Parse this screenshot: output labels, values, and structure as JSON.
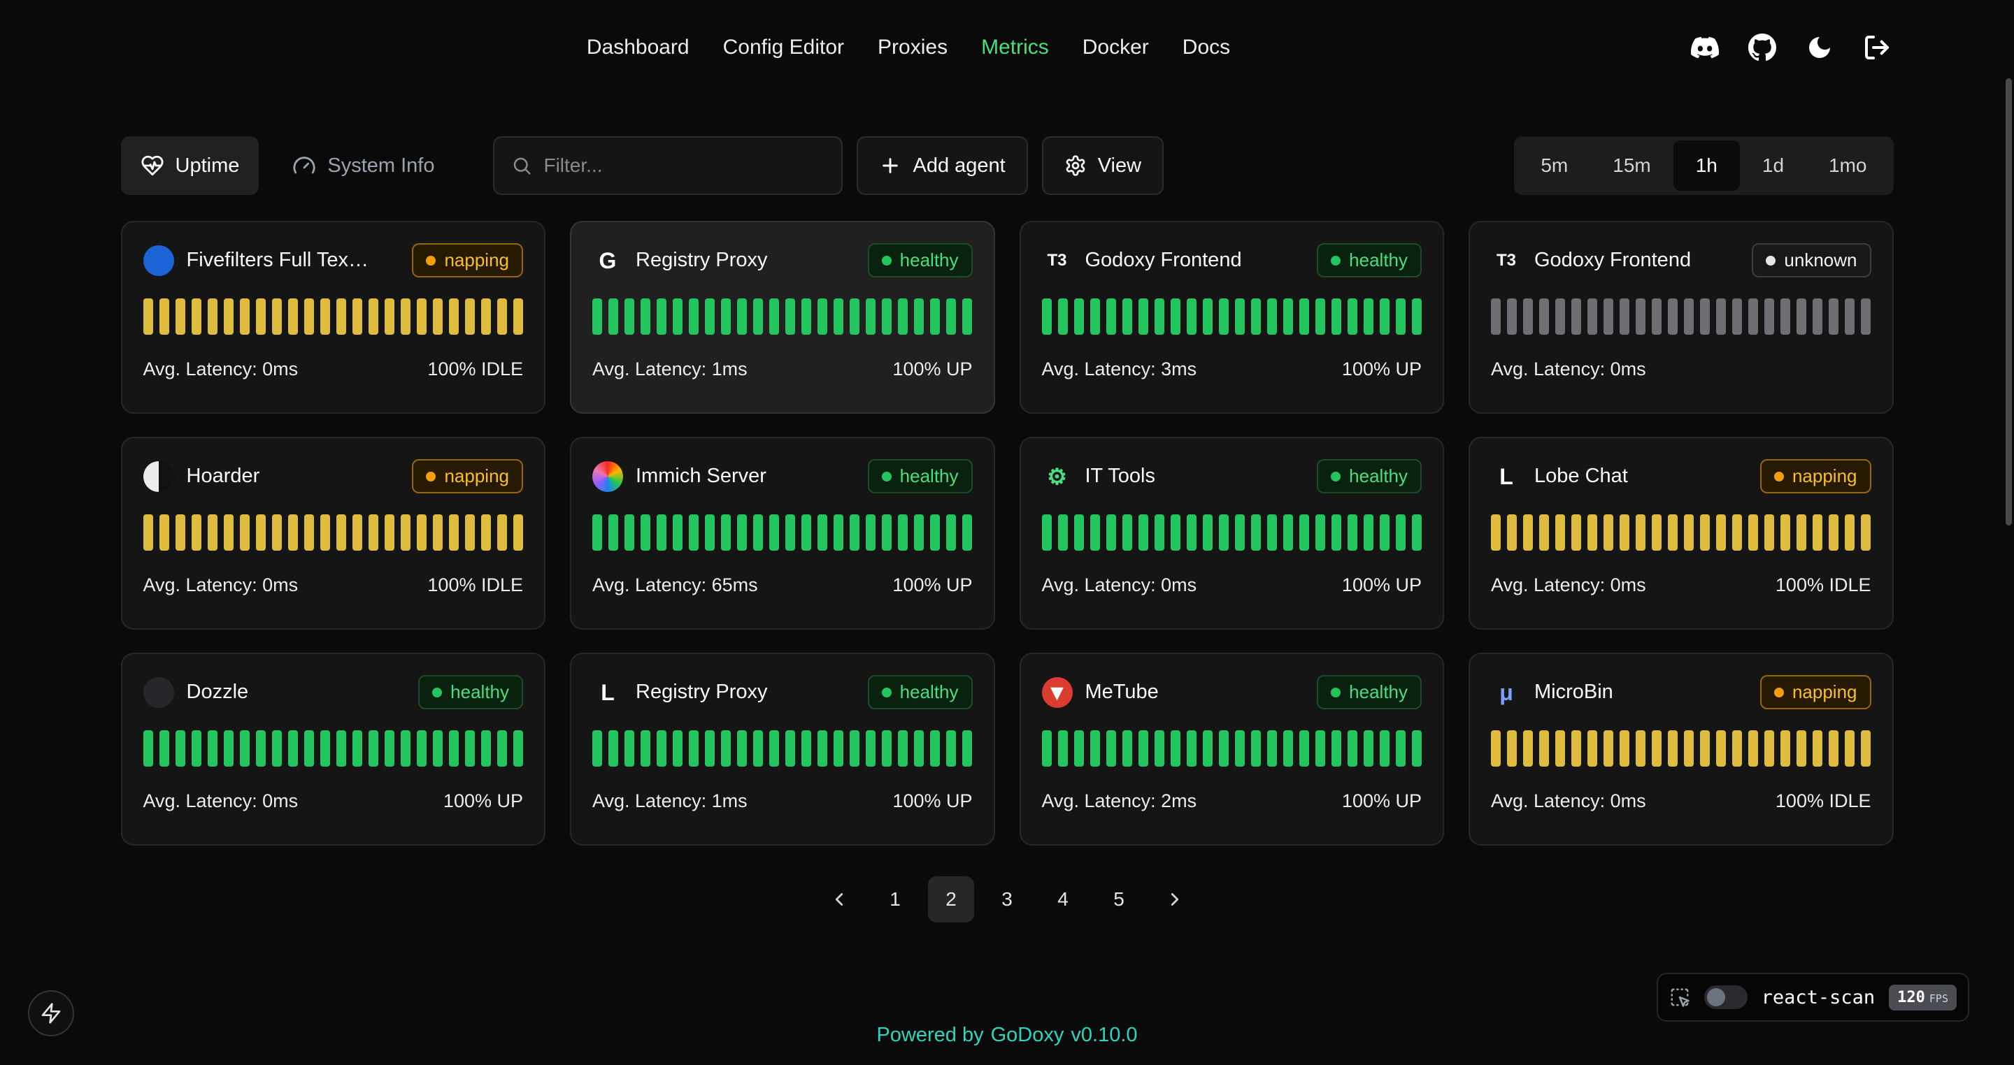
{
  "nav": {
    "items": [
      {
        "label": "Dashboard",
        "active": false
      },
      {
        "label": "Config Editor",
        "active": false
      },
      {
        "label": "Proxies",
        "active": false
      },
      {
        "label": "Metrics",
        "active": true
      },
      {
        "label": "Docker",
        "active": false
      },
      {
        "label": "Docs",
        "active": false
      }
    ],
    "icons": [
      "discord-icon",
      "github-icon",
      "dark-mode-icon",
      "logout-icon"
    ]
  },
  "toolbar": {
    "tabs": [
      {
        "label": "Uptime",
        "icon": "heart-pulse-icon",
        "active": true
      },
      {
        "label": "System Info",
        "icon": "gauge-icon",
        "active": false
      }
    ],
    "filter": {
      "placeholder": "Filter..."
    },
    "add_agent_label": "Add agent",
    "view_label": "View",
    "time_ranges": [
      {
        "label": "5m",
        "active": false
      },
      {
        "label": "15m",
        "active": false
      },
      {
        "label": "1h",
        "active": true
      },
      {
        "label": "1d",
        "active": false
      },
      {
        "label": "1mo",
        "active": false
      }
    ]
  },
  "status_styles": {
    "healthy": {
      "text": "#4ade80",
      "dot": "#22c55e",
      "bg": "#08220f",
      "border": "#1d4b2a",
      "bar": "#22c55e"
    },
    "napping": {
      "text": "#fbbf24",
      "dot": "#f59e0b",
      "bg": "#261a02",
      "border": "#96650c",
      "bar": "#dfbc3e"
    },
    "unknown": {
      "text": "#f5f5f5",
      "dot": "#e5e5e5",
      "bg": "#181818",
      "border": "#3d3d3d",
      "bar": "#6d6f75"
    }
  },
  "bar_count": 24,
  "cards": [
    {
      "name": "Fivefilters Full Tex…",
      "status": "napping",
      "latency": "Avg. Latency: 0ms",
      "uptime": "100% IDLE",
      "highlight": false,
      "icon": {
        "shape": "disc",
        "glyph": "",
        "bg": "#1d63d8",
        "fg": "#ffffff"
      }
    },
    {
      "name": "Registry Proxy",
      "status": "healthy",
      "latency": "Avg. Latency: 1ms",
      "uptime": "100% UP",
      "highlight": true,
      "icon": {
        "shape": "text",
        "glyph": "G",
        "bg": "transparent",
        "fg": "#ffffff"
      }
    },
    {
      "name": "Godoxy Frontend",
      "status": "healthy",
      "latency": "Avg. Latency: 3ms",
      "uptime": "100% UP",
      "highlight": false,
      "icon": {
        "shape": "text",
        "glyph": "T3",
        "bg": "transparent",
        "fg": "#ffffff"
      }
    },
    {
      "name": "Godoxy Frontend",
      "status": "unknown",
      "latency": "Avg. Latency: 0ms",
      "uptime": "",
      "highlight": false,
      "icon": {
        "shape": "text",
        "glyph": "T3",
        "bg": "transparent",
        "fg": "#ffffff"
      }
    },
    {
      "name": "Hoarder",
      "status": "napping",
      "latency": "Avg. Latency: 0ms",
      "uptime": "100% IDLE",
      "highlight": false,
      "icon": {
        "shape": "disc",
        "glyph": "",
        "bg": "split",
        "fg": "#ffffff"
      }
    },
    {
      "name": "Immich Server",
      "status": "healthy",
      "latency": "Avg. Latency: 65ms",
      "uptime": "100% UP",
      "highlight": false,
      "icon": {
        "shape": "disc",
        "glyph": "",
        "bg": "conic",
        "fg": "#ffffff"
      }
    },
    {
      "name": "IT Tools",
      "status": "healthy",
      "latency": "Avg. Latency: 0ms",
      "uptime": "100% UP",
      "highlight": false,
      "icon": {
        "shape": "text",
        "glyph": "⚙",
        "bg": "transparent",
        "fg": "#4ade80"
      }
    },
    {
      "name": "Lobe Chat",
      "status": "napping",
      "latency": "Avg. Latency: 0ms",
      "uptime": "100% IDLE",
      "highlight": false,
      "icon": {
        "shape": "text",
        "glyph": "L",
        "bg": "transparent",
        "fg": "#ffffff"
      }
    },
    {
      "name": "Dozzle",
      "status": "healthy",
      "latency": "Avg. Latency: 0ms",
      "uptime": "100% UP",
      "highlight": false,
      "icon": {
        "shape": "disc",
        "glyph": "",
        "bg": "#26262b",
        "fg": "#ffffff"
      }
    },
    {
      "name": "Registry Proxy",
      "status": "healthy",
      "latency": "Avg. Latency: 1ms",
      "uptime": "100% UP",
      "highlight": false,
      "icon": {
        "shape": "text",
        "glyph": "L",
        "bg": "transparent",
        "fg": "#ffffff"
      }
    },
    {
      "name": "MeTube",
      "status": "healthy",
      "latency": "Avg. Latency: 2ms",
      "uptime": "100% UP",
      "highlight": false,
      "icon": {
        "shape": "disc",
        "glyph": "▼",
        "bg": "#dc3b30",
        "fg": "#ffffff"
      }
    },
    {
      "name": "MicroBin",
      "status": "napping",
      "latency": "Avg. Latency: 0ms",
      "uptime": "100% IDLE",
      "highlight": false,
      "icon": {
        "shape": "text",
        "glyph": "μ",
        "bg": "transparent",
        "fg": "#7aa2f7"
      }
    }
  ],
  "pagination": {
    "pages": [
      "1",
      "2",
      "3",
      "4",
      "5"
    ],
    "active": "2"
  },
  "footer": {
    "powered_by": "Powered by",
    "brand": "GoDoxy",
    "version": "v0.10.0"
  },
  "react_scan": {
    "label": "react-scan",
    "fps_value": "120",
    "fps_unit": "FPS"
  },
  "colors": {
    "accent_green": "#4ade80",
    "footer_teal": "#2dd4bf",
    "page_bg": "#0a0a0a"
  }
}
